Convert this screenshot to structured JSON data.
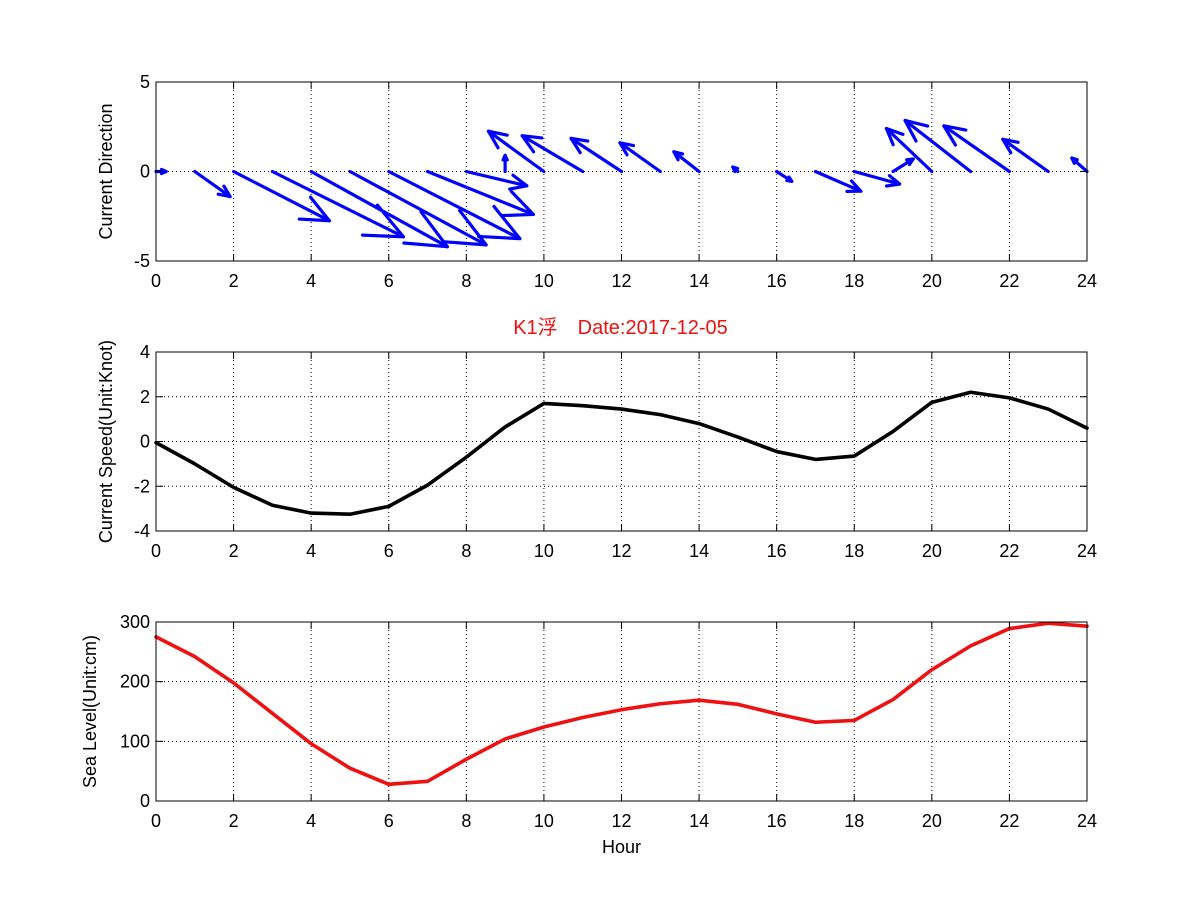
{
  "colors": {
    "direction": "#0000ff",
    "speed": "#000000",
    "level": "#ee1111",
    "title": "#ee1111"
  },
  "chart_data": [
    {
      "type": "quiver",
      "title": "",
      "xlabel": "",
      "ylabel": "Current Direction",
      "xlim": [
        0,
        24
      ],
      "ylim": [
        -5,
        5
      ],
      "xticks": [
        "0",
        "2",
        "4",
        "6",
        "8",
        "10",
        "12",
        "14",
        "16",
        "18",
        "20",
        "22",
        "24"
      ],
      "yticks": [
        "-5",
        "0",
        "5"
      ],
      "grid": true,
      "vectors": [
        {
          "x": 0,
          "u": 0.1,
          "v": 0.0
        },
        {
          "x": 1,
          "u": 0.35,
          "v": -1.4
        },
        {
          "x": 2,
          "u": 0.95,
          "v": -2.75
        },
        {
          "x": 3,
          "u": 1.3,
          "v": -3.65
        },
        {
          "x": 4,
          "u": 1.35,
          "v": -4.2
        },
        {
          "x": 5,
          "u": 1.35,
          "v": -4.1
        },
        {
          "x": 6,
          "u": 1.3,
          "v": -3.75
        },
        {
          "x": 7,
          "u": 1.05,
          "v": -2.4
        },
        {
          "x": 8,
          "u": 0.6,
          "v": -0.8
        },
        {
          "x": 9,
          "u": 0.0,
          "v": 0.9
        },
        {
          "x": 10,
          "u": -0.55,
          "v": 2.25
        },
        {
          "x": 11,
          "u": -0.6,
          "v": 2.0
        },
        {
          "x": 12,
          "u": -0.5,
          "v": 1.85
        },
        {
          "x": 13,
          "u": -0.4,
          "v": 1.6
        },
        {
          "x": 14,
          "u": -0.25,
          "v": 1.1
        },
        {
          "x": 15,
          "u": -0.05,
          "v": 0.25
        },
        {
          "x": 16,
          "u": 0.15,
          "v": -0.55
        },
        {
          "x": 17,
          "u": 0.45,
          "v": -1.1
        },
        {
          "x": 18,
          "u": 0.45,
          "v": -0.7
        },
        {
          "x": 19,
          "u": 0.2,
          "v": 0.7
        },
        {
          "x": 20,
          "u": -0.45,
          "v": 2.4
        },
        {
          "x": 21,
          "u": -0.65,
          "v": 2.85
        },
        {
          "x": 22,
          "u": -0.65,
          "v": 2.55
        },
        {
          "x": 23,
          "u": -0.45,
          "v": 1.8
        },
        {
          "x": 24,
          "u": -0.15,
          "v": 0.75
        }
      ]
    },
    {
      "type": "line",
      "title": "K1浮　Date:2017-12-05",
      "xlabel": "",
      "ylabel": "Current Speed(Unit:Knot)",
      "xlim": [
        0,
        24
      ],
      "ylim": [
        -4,
        4
      ],
      "xticks": [
        "0",
        "2",
        "4",
        "6",
        "8",
        "10",
        "12",
        "14",
        "16",
        "18",
        "20",
        "22",
        "24"
      ],
      "yticks": [
        "-4",
        "-2",
        "0",
        "2",
        "4"
      ],
      "grid": true,
      "x": [
        0,
        1,
        2,
        3,
        4,
        5,
        6,
        7,
        8,
        9,
        10,
        11,
        12,
        13,
        14,
        15,
        16,
        17,
        18,
        19,
        20,
        21,
        22,
        23,
        24
      ],
      "series": [
        {
          "values": [
            -0.05,
            -1.0,
            -2.05,
            -2.85,
            -3.2,
            -3.25,
            -2.9,
            -1.95,
            -0.7,
            0.65,
            1.7,
            1.6,
            1.45,
            1.2,
            0.8,
            0.2,
            -0.45,
            -0.8,
            -0.65,
            0.45,
            1.75,
            2.2,
            1.95,
            1.45,
            0.6
          ]
        }
      ]
    },
    {
      "type": "line",
      "title": "",
      "xlabel": "Hour",
      "ylabel": "Sea Level(Unit:cm)",
      "xlim": [
        0,
        24
      ],
      "ylim": [
        0,
        300
      ],
      "xticks": [
        "0",
        "2",
        "4",
        "6",
        "8",
        "10",
        "12",
        "14",
        "16",
        "18",
        "20",
        "22",
        "24"
      ],
      "yticks": [
        "0",
        "100",
        "200",
        "300"
      ],
      "grid": true,
      "x": [
        0,
        1,
        2,
        3,
        4,
        5,
        6,
        7,
        8,
        9,
        10,
        11,
        12,
        13,
        14,
        15,
        16,
        17,
        18,
        19,
        20,
        21,
        22,
        23,
        24
      ],
      "series": [
        {
          "values": [
            275,
            242,
            198,
            147,
            96,
            55,
            28,
            33,
            70,
            104,
            124,
            140,
            153,
            163,
            169,
            162,
            146,
            132,
            135,
            170,
            220,
            260,
            289,
            298,
            293
          ]
        }
      ]
    }
  ]
}
